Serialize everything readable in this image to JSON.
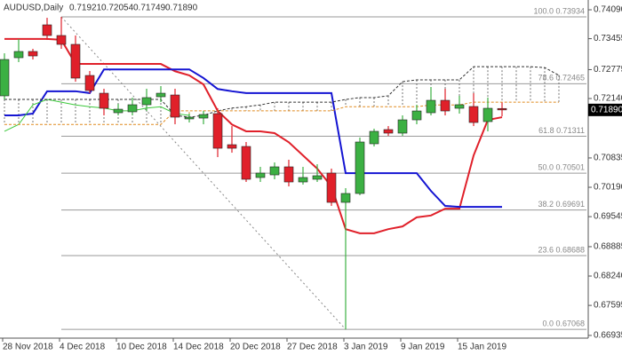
{
  "chart_data": {
    "type": "candlestick",
    "title": "AUDUSD,Daily",
    "header_labels": [
      "0.71921",
      "0.72054",
      "0.71749",
      "0.71890"
    ],
    "last_price_label": "0.71890",
    "categories": [
      "28 Nov 2018",
      null,
      null,
      null,
      "4 Dec 2018",
      null,
      null,
      null,
      "10 Dec 2018",
      null,
      null,
      null,
      "14 Dec 2018",
      null,
      null,
      null,
      "20 Dec 2018",
      null,
      null,
      null,
      "27 Dec 2018",
      null,
      null,
      null,
      "3 Jan 2019",
      null,
      null,
      null,
      "9 Jan 2019",
      null,
      null,
      null,
      "15 Jan 2019",
      null,
      null,
      null,
      null,
      null,
      null,
      null
    ],
    "open": [
      0.72199,
      0.73037,
      0.73174,
      0.73759,
      0.73525,
      0.7333,
      0.72647,
      0.72257,
      0.71828,
      0.71848,
      0.72004,
      0.72179,
      0.72218,
      0.71692,
      0.71711,
      0.71809,
      0.71126,
      0.71087,
      0.70405,
      0.70463,
      0.70639,
      0.70307,
      0.70366,
      0.70502,
      0.69859,
      0.70054,
      0.71146,
      0.71458,
      0.7138,
      0.71672,
      0.71828,
      0.72101,
      0.71926,
      0.71965,
      0.71633,
      0.71921,
      null,
      null,
      null,
      null
    ],
    "high": [
      0.73134,
      0.73447,
      0.73232,
      0.73914,
      0.73934,
      0.73525,
      0.72745,
      0.72355,
      0.72023,
      0.7216,
      0.72355,
      0.72413,
      0.72355,
      0.71809,
      0.71867,
      0.71926,
      0.71535,
      0.71185,
      0.70639,
      0.70736,
      0.70795,
      0.70639,
      0.70697,
      0.706,
      0.70171,
      0.71283,
      0.71477,
      0.71535,
      0.7177,
      0.72004,
      0.72394,
      0.72355,
      0.72199,
      0.72257,
      0.7216,
      0.72054,
      null,
      null,
      null,
      null
    ],
    "low": [
      0.7212,
      0.7294,
      0.72998,
      0.73427,
      0.73232,
      0.7251,
      0.72257,
      0.7177,
      0.7177,
      0.7177,
      0.71867,
      0.72062,
      0.71575,
      0.71614,
      0.71575,
      0.70853,
      0.7095,
      0.70307,
      0.70307,
      0.70366,
      0.7021,
      0.70249,
      0.70307,
      0.69781,
      0.67068,
      0.70015,
      0.71087,
      0.71321,
      0.71321,
      0.71575,
      0.7177,
      0.7177,
      0.71809,
      0.71535,
      0.71419,
      0.71749,
      null,
      null,
      null,
      null
    ],
    "close": [
      0.72998,
      0.73174,
      0.73076,
      0.73525,
      0.7333,
      0.72589,
      0.72316,
      0.71926,
      0.71906,
      0.72004,
      0.7216,
      0.72257,
      0.71731,
      0.71731,
      0.71789,
      0.71048,
      0.71048,
      0.70366,
      0.70502,
      0.70639,
      0.70307,
      0.70405,
      0.70444,
      0.69859,
      0.70054,
      0.71185,
      0.71419,
      0.7138,
      0.71672,
      0.71867,
      0.72101,
      0.71867,
      0.72004,
      0.71614,
      0.71926,
      0.7189,
      null,
      null,
      null,
      null
    ],
    "up_color": "#3cb043",
    "down_color": "#e0202a",
    "lines": [
      {
        "color": "#e0202a",
        "width": 2,
        "dash": "none",
        "values": [
          0.7345,
          0.7345,
          0.7345,
          0.7345,
          0.7343,
          0.729,
          0.729,
          0.729,
          0.729,
          0.729,
          0.729,
          0.729,
          0.7274,
          0.7265,
          0.7245,
          0.7187,
          0.7157,
          0.7142,
          0.7142,
          0.7138,
          0.7118,
          0.7089,
          0.706,
          0.7021,
          0.6927,
          0.6918,
          0.6918,
          0.6927,
          0.6933,
          0.6953,
          0.6957,
          0.6972,
          0.6972,
          0.7089,
          0.7167,
          0.7173,
          null,
          null,
          null,
          null
        ]
      },
      {
        "color": "#1414d2",
        "width": 2,
        "dash": "none",
        "values": [
          0.7177,
          0.7177,
          0.7181,
          0.723,
          0.723,
          0.723,
          0.7226,
          0.7278,
          0.7278,
          0.7278,
          0.7278,
          0.7278,
          0.7278,
          0.7278,
          0.7259,
          0.7235,
          0.723,
          0.7226,
          0.7226,
          0.7226,
          0.7226,
          0.7226,
          0.7226,
          0.7226,
          0.705,
          0.705,
          0.705,
          0.705,
          0.705,
          0.705,
          0.7011,
          0.6978,
          0.6976,
          0.6976,
          0.6976,
          0.6976,
          null,
          null,
          null,
          null
        ]
      },
      {
        "color": "#3cc83c",
        "width": 1,
        "dash": "none",
        "values": [
          0.7142,
          0.7157,
          0.72,
          0.7212,
          0.7206,
          0.72,
          0.7196,
          0.7193,
          0.7187,
          0.7187,
          0.7193,
          0.7196,
          0.7181,
          0.7177,
          null,
          null,
          null,
          null,
          null,
          null,
          null,
          null,
          null,
          null,
          null,
          null,
          null,
          null,
          null,
          null,
          null,
          null,
          null,
          null,
          null,
          null,
          null,
          null,
          null,
          null
        ]
      },
      {
        "color": "#333333",
        "width": 1,
        "dash": "3 2",
        "values": [
          0.7212,
          0.7212,
          0.7212,
          0.7212,
          0.7212,
          0.7212,
          0.7212,
          0.7212,
          0.7212,
          0.7212,
          0.7212,
          0.7212,
          0.7177,
          0.7173,
          0.7177,
          0.7187,
          0.7193,
          0.7196,
          0.72,
          0.7206,
          0.7206,
          0.7206,
          0.7206,
          0.7206,
          0.7212,
          0.7216,
          0.7216,
          0.722,
          0.7251,
          0.7255,
          0.7255,
          0.7255,
          0.7255,
          0.7284,
          0.7284,
          0.7284,
          0.7284,
          0.7284,
          0.7282,
          0.7265
        ]
      },
      {
        "color": "#e08a1e",
        "width": 1,
        "dash": "3 2",
        "values": [
          0.7157,
          0.7157,
          0.7157,
          0.7157,
          0.7157,
          0.7157,
          0.7157,
          0.7157,
          0.7157,
          0.7157,
          0.7157,
          0.7157,
          0.7187,
          0.7187,
          0.7187,
          0.7187,
          0.7187,
          0.7187,
          0.7187,
          0.7187,
          0.7187,
          0.7187,
          0.7187,
          0.7187,
          0.7196,
          0.7196,
          0.7196,
          0.7196,
          0.7196,
          0.7196,
          0.72,
          0.72,
          0.72,
          0.7206,
          0.7206,
          0.7206,
          0.7206,
          0.7206,
          0.7206,
          0.7206
        ]
      }
    ],
    "fib": {
      "color": "#9a9a9a",
      "levels": [
        {
          "label": "100.0 0.73934",
          "value": 0.73934
        },
        {
          "label": "78.6 0.72465",
          "value": 0.72465
        },
        {
          "label": "61.8 0.71311",
          "value": 0.71311
        },
        {
          "label": "50.0 0.70501",
          "value": 0.70501
        },
        {
          "label": "38.2 0.69691",
          "value": 0.69691
        },
        {
          "label": "23.6 0.68688",
          "value": 0.68688
        },
        {
          "label": "0.0 0.67068",
          "value": 0.67068
        }
      ]
    },
    "ylim": [
      0.66895,
      0.74305
    ],
    "yticks": [
      {
        "value": 0.7409,
        "label": "0.74090"
      },
      0.73455,
      0.72775,
      {
        "value": 0.7214,
        "label": "0.72140"
      },
      0.70835,
      {
        "value": 0.7019,
        "label": "0.70190"
      },
      0.69545,
      0.68885,
      {
        "value": 0.6824,
        "label": "0.68240"
      },
      0.67595,
      0.66935
    ]
  }
}
